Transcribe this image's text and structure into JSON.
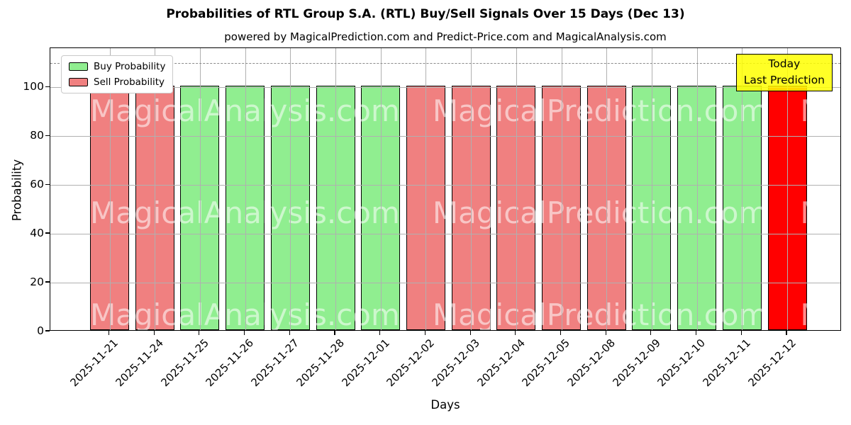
{
  "title": "Probabilities of RTL Group S.A. (RTL) Buy/Sell Signals Over 15 Days (Dec 13)",
  "subtitle": "powered by MagicalPrediction.com and Predict-Price.com and MagicalAnalysis.com",
  "axes": {
    "x_label": "Days",
    "y_label": "Probability",
    "y_ticks": [
      0,
      20,
      40,
      60,
      80,
      100
    ],
    "ylim": [
      0,
      116
    ],
    "threshold_value": 110,
    "grid": true
  },
  "legend": {
    "position": "top-left",
    "items": [
      {
        "label": "Buy Probability",
        "color": "#90EE90"
      },
      {
        "label": "Sell Probability",
        "color": "#F08080"
      }
    ]
  },
  "annotation": {
    "lines": [
      "Today",
      "Last Prediction"
    ],
    "bg_color": "#FFFF00"
  },
  "watermark": {
    "texts": [
      "MagicalAnalysis.com",
      "MagicalPrediction.com",
      "MagicalAnalysis.com"
    ]
  },
  "colors": {
    "buy": "#90EE90",
    "sell": "#F08080",
    "today": "#FF0000",
    "bar_edge": "#000000",
    "grid": "#b0b0b0",
    "dashed": "#8a8a8a"
  },
  "chart_data": {
    "type": "bar",
    "title": "Probabilities of RTL Group S.A. (RTL) Buy/Sell Signals Over 15 Days (Dec 13)",
    "xlabel": "Days",
    "ylabel": "Probability",
    "ylim": [
      0,
      116
    ],
    "grid": true,
    "legend_position": "upper left",
    "threshold_dashed_line_y": 110,
    "categories": [
      "2025-11-21",
      "2025-11-24",
      "2025-11-25",
      "2025-11-26",
      "2025-11-27",
      "2025-11-28",
      "2025-12-01",
      "2025-12-02",
      "2025-12-03",
      "2025-12-04",
      "2025-12-05",
      "2025-12-08",
      "2025-12-09",
      "2025-12-10",
      "2025-12-11",
      "2025-12-12"
    ],
    "values": [
      100,
      100,
      100,
      100,
      100,
      100,
      100,
      100,
      100,
      100,
      100,
      100,
      100,
      100,
      100,
      100
    ],
    "signals": [
      "sell",
      "sell",
      "buy",
      "buy",
      "buy",
      "buy",
      "buy",
      "sell",
      "sell",
      "sell",
      "sell",
      "sell",
      "buy",
      "buy",
      "buy",
      "today"
    ]
  }
}
